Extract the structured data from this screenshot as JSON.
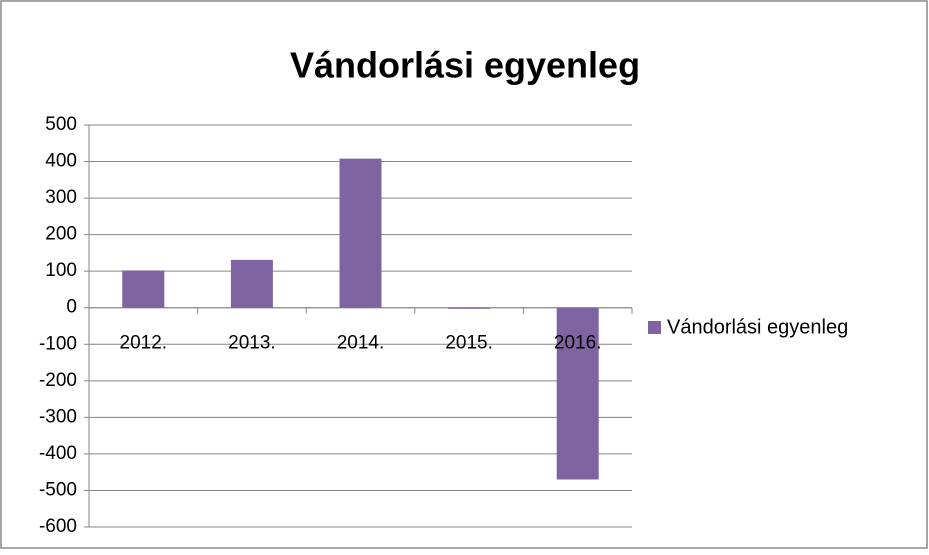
{
  "chart_data": {
    "type": "bar",
    "title": "Vándorlási egyenleg",
    "categories": [
      "2012.",
      "2013.",
      "2014.",
      "2015.",
      "2016."
    ],
    "series": [
      {
        "name": "Vándorlási egyenleg",
        "color": "#8064a2",
        "values": [
          102,
          131,
          408,
          -3,
          -470
        ]
      }
    ],
    "ylim": [
      -600,
      500
    ],
    "yticks": [
      -600,
      -500,
      -400,
      -300,
      -200,
      -100,
      0,
      100,
      200,
      300,
      400,
      500
    ],
    "grid": true,
    "legend": "right"
  }
}
